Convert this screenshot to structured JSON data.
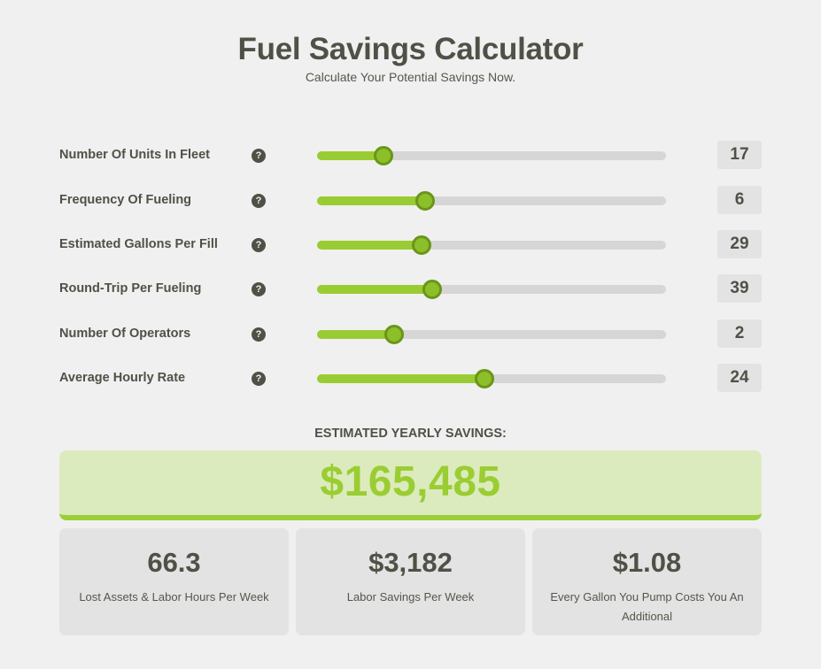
{
  "header": {
    "title": "Fuel Savings Calculator",
    "subtitle": "Calculate Your Potential Savings Now."
  },
  "help_glyph": "?",
  "sliders": [
    {
      "label": "Number Of Units In Fleet",
      "value": "17",
      "fraction": 0.19
    },
    {
      "label": "Frequency Of Fueling",
      "value": "6",
      "fraction": 0.31
    },
    {
      "label": "Estimated Gallons Per Fill",
      "value": "29",
      "fraction": 0.3
    },
    {
      "label": "Round-Trip Per Fueling",
      "value": "39",
      "fraction": 0.33
    },
    {
      "label": "Number Of Operators",
      "value": "2",
      "fraction": 0.22
    },
    {
      "label": "Average Hourly Rate",
      "value": "24",
      "fraction": 0.48
    }
  ],
  "estimate": {
    "label": "ESTIMATED YEARLY SAVINGS:",
    "value": "$165,485"
  },
  "cards": [
    {
      "value": "66.3",
      "label": "Lost Assets & Labor Hours Per Week"
    },
    {
      "value": "$3,182",
      "label": "Labor Savings Per Week"
    },
    {
      "value": "$1.08",
      "label": "Every Gallon You Pump Costs You An Additional"
    }
  ],
  "colors": {
    "accent": "#99cc33",
    "thumb": "#8cbf2a",
    "text": "#4f5146"
  }
}
